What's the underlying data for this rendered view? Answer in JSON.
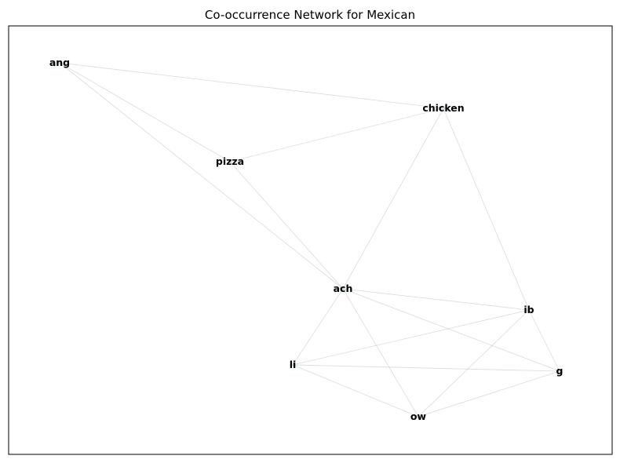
{
  "title": "Co-occurrence Network for Mexican",
  "nodes": [
    {
      "id": "ang",
      "label": "ang"
    },
    {
      "id": "chicken",
      "label": "chicken"
    },
    {
      "id": "pizza",
      "label": "pizza"
    },
    {
      "id": "ach",
      "label": "ach"
    },
    {
      "id": "ib",
      "label": "ib"
    },
    {
      "id": "li",
      "label": "li"
    },
    {
      "id": "g",
      "label": "g"
    },
    {
      "id": "ow",
      "label": "ow"
    }
  ],
  "edges": [
    [
      "ang",
      "chicken"
    ],
    [
      "ang",
      "pizza"
    ],
    [
      "ang",
      "ach"
    ],
    [
      "pizza",
      "chicken"
    ],
    [
      "pizza",
      "ach"
    ],
    [
      "chicken",
      "ach"
    ],
    [
      "chicken",
      "ib"
    ],
    [
      "ach",
      "ib"
    ],
    [
      "ach",
      "g"
    ],
    [
      "ach",
      "li"
    ],
    [
      "ach",
      "ow"
    ],
    [
      "ib",
      "li"
    ],
    [
      "ib",
      "g"
    ],
    [
      "ib",
      "ow"
    ],
    [
      "li",
      "g"
    ],
    [
      "li",
      "ow"
    ],
    [
      "g",
      "ow"
    ]
  ],
  "colors": {
    "node": "#a9d6ec",
    "edge": "#bdbdbd",
    "frame": "#000000"
  }
}
